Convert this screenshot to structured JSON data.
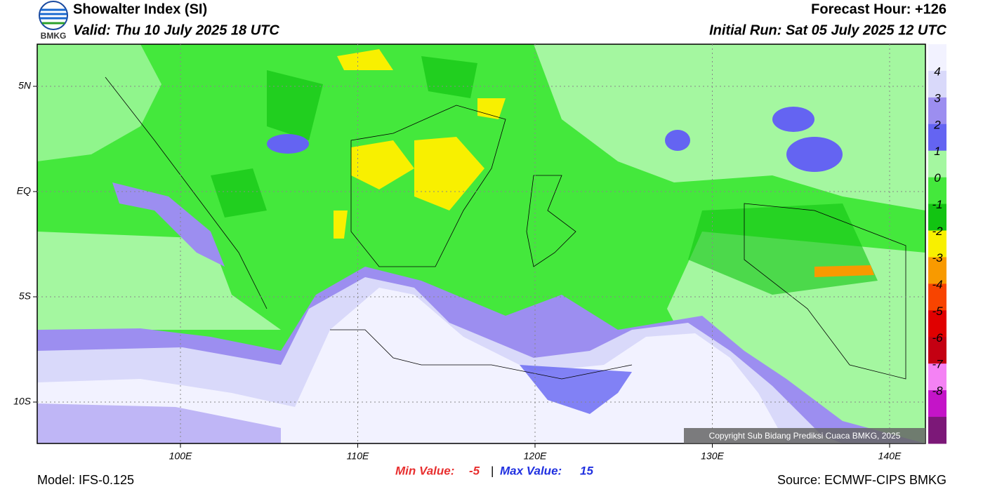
{
  "header": {
    "logo": "BMKG",
    "title": "Showalter Index (SI)",
    "valid": "Valid: Thu 10 July 2025 18 UTC",
    "forecast_hour": "Forecast Hour: +126",
    "initial_run": "Initial Run: Sat 05 July 2025 12 UTC"
  },
  "map": {
    "lat_labels": [
      "5N",
      "EQ",
      "5S",
      "10S"
    ],
    "lon_labels": [
      "100E",
      "110E",
      "120E",
      "130E",
      "140E"
    ],
    "copyright": "Copyright Sub Bidang Prediksi Cuaca BMKG, 2025"
  },
  "colorbar": {
    "colors": [
      "#f2f2ff",
      "#d9d9fa",
      "#9c8ef0",
      "#6464f2",
      "#a4f7a0",
      "#44e83c",
      "#12c412",
      "#f8f000",
      "#f89a00",
      "#f84400",
      "#e00000",
      "#c40012",
      "#f482f4",
      "#c414c8",
      "#7c1878"
    ],
    "labels": [
      "4",
      "3",
      "2",
      "1",
      "0",
      "-1",
      "-2",
      "-3",
      "-4",
      "-5",
      "-6",
      "-7",
      "-8"
    ]
  },
  "footer": {
    "model": "Model: IFS-0.125",
    "min_label": "Min Value:",
    "min_value": "-5",
    "separator": "|",
    "max_label": "Max Value:",
    "max_value": "15",
    "source": "Source: ECMWF-CIPS BMKG"
  }
}
